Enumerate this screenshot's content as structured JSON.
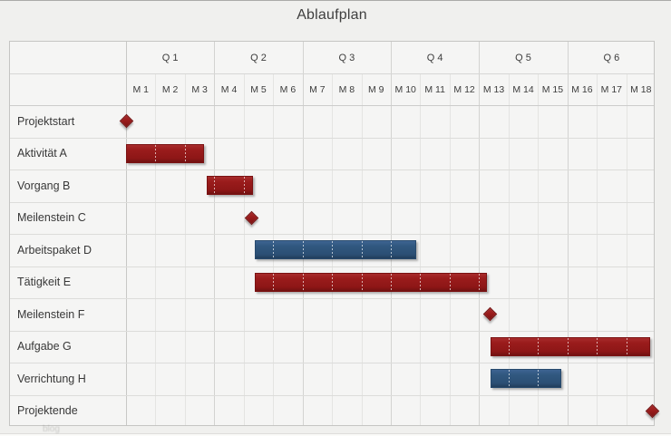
{
  "title": "Ablaufplan",
  "watermark": "blog",
  "colors": {
    "bar_red": "#9a1c1c",
    "bar_blue": "#315880",
    "grid_quarter": "#d3d3d1",
    "grid_month": "#e4e4e2",
    "table_border": "#c5c5c3",
    "background": "#f0f0ee",
    "text": "#3a3a3a"
  },
  "chart_data": {
    "type": "gantt",
    "title": "Ablaufplan",
    "time_axis": {
      "unit": "months",
      "range": [
        0,
        18
      ],
      "quarter_labels": [
        "Q 1",
        "Q 2",
        "Q 3",
        "Q 4",
        "Q 5",
        "Q 6"
      ],
      "month_labels": [
        "M 1",
        "M 2",
        "M 3",
        "M 4",
        "M 5",
        "M 6",
        "M 7",
        "M 8",
        "M 9",
        "M 10",
        "M 11",
        "M 12",
        "M 13",
        "M 14",
        "M 15",
        "M 16",
        "M 17",
        "M 18"
      ],
      "grid": "on"
    },
    "tasks": [
      {
        "label": "Projektstart",
        "type": "milestone",
        "at": 0,
        "color": "red"
      },
      {
        "label": "Aktivität A",
        "type": "bar",
        "start": 0,
        "end": 2.65,
        "color": "red"
      },
      {
        "label": "Vorgang B",
        "type": "bar",
        "start": 2.75,
        "end": 4.3,
        "color": "red"
      },
      {
        "label": "Meilenstein C",
        "type": "milestone",
        "at": 4.27,
        "color": "red"
      },
      {
        "label": "Arbeitspaket D",
        "type": "bar",
        "start": 4.38,
        "end": 9.85,
        "color": "blue"
      },
      {
        "label": "Tätigkeit E",
        "type": "bar",
        "start": 4.38,
        "end": 12.28,
        "color": "red"
      },
      {
        "label": "Meilenstein F",
        "type": "milestone",
        "at": 12.38,
        "color": "red"
      },
      {
        "label": "Aufgabe G",
        "type": "bar",
        "start": 12.38,
        "end": 17.82,
        "color": "red"
      },
      {
        "label": "Verrichtung H",
        "type": "bar",
        "start": 12.38,
        "end": 14.78,
        "color": "blue"
      },
      {
        "label": "Projektende",
        "type": "milestone",
        "at": 17.88,
        "color": "red"
      }
    ]
  }
}
